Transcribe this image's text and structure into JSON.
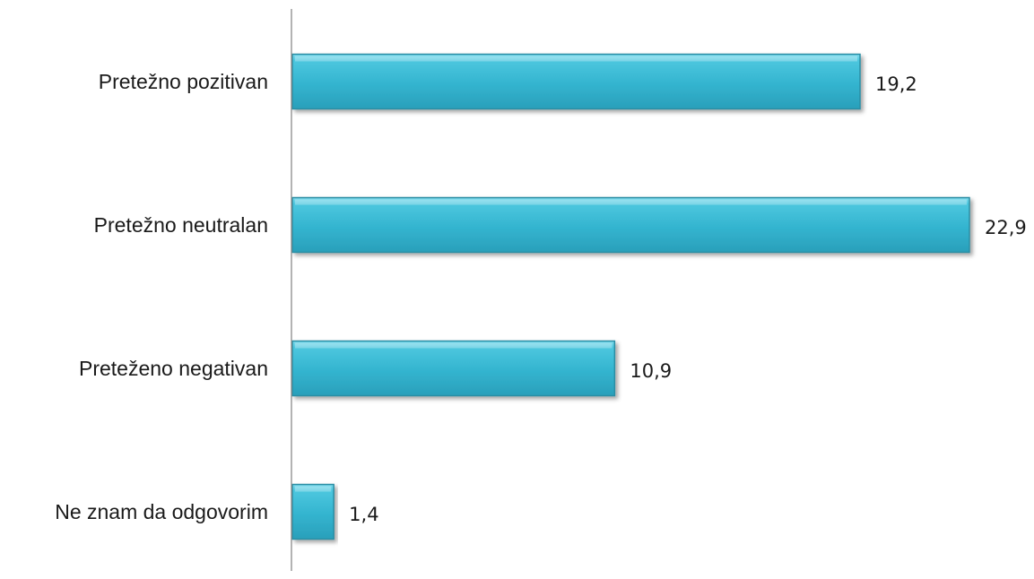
{
  "chart_data": {
    "type": "bar",
    "orientation": "horizontal",
    "categories": [
      "Pretežno pozitivan",
      "Pretežno neutralan",
      "Preteženo negativan",
      "Ne znam da odgovorim"
    ],
    "values": [
      19.2,
      22.9,
      10.9,
      1.4
    ],
    "value_labels": [
      "19,2",
      "22,9",
      "10,9",
      "1,4"
    ],
    "xlim": [
      0,
      25
    ],
    "grid": false,
    "legend": "none",
    "bar_color": "#3FBDD6",
    "bar_edge_color": "#2A8EA4"
  }
}
